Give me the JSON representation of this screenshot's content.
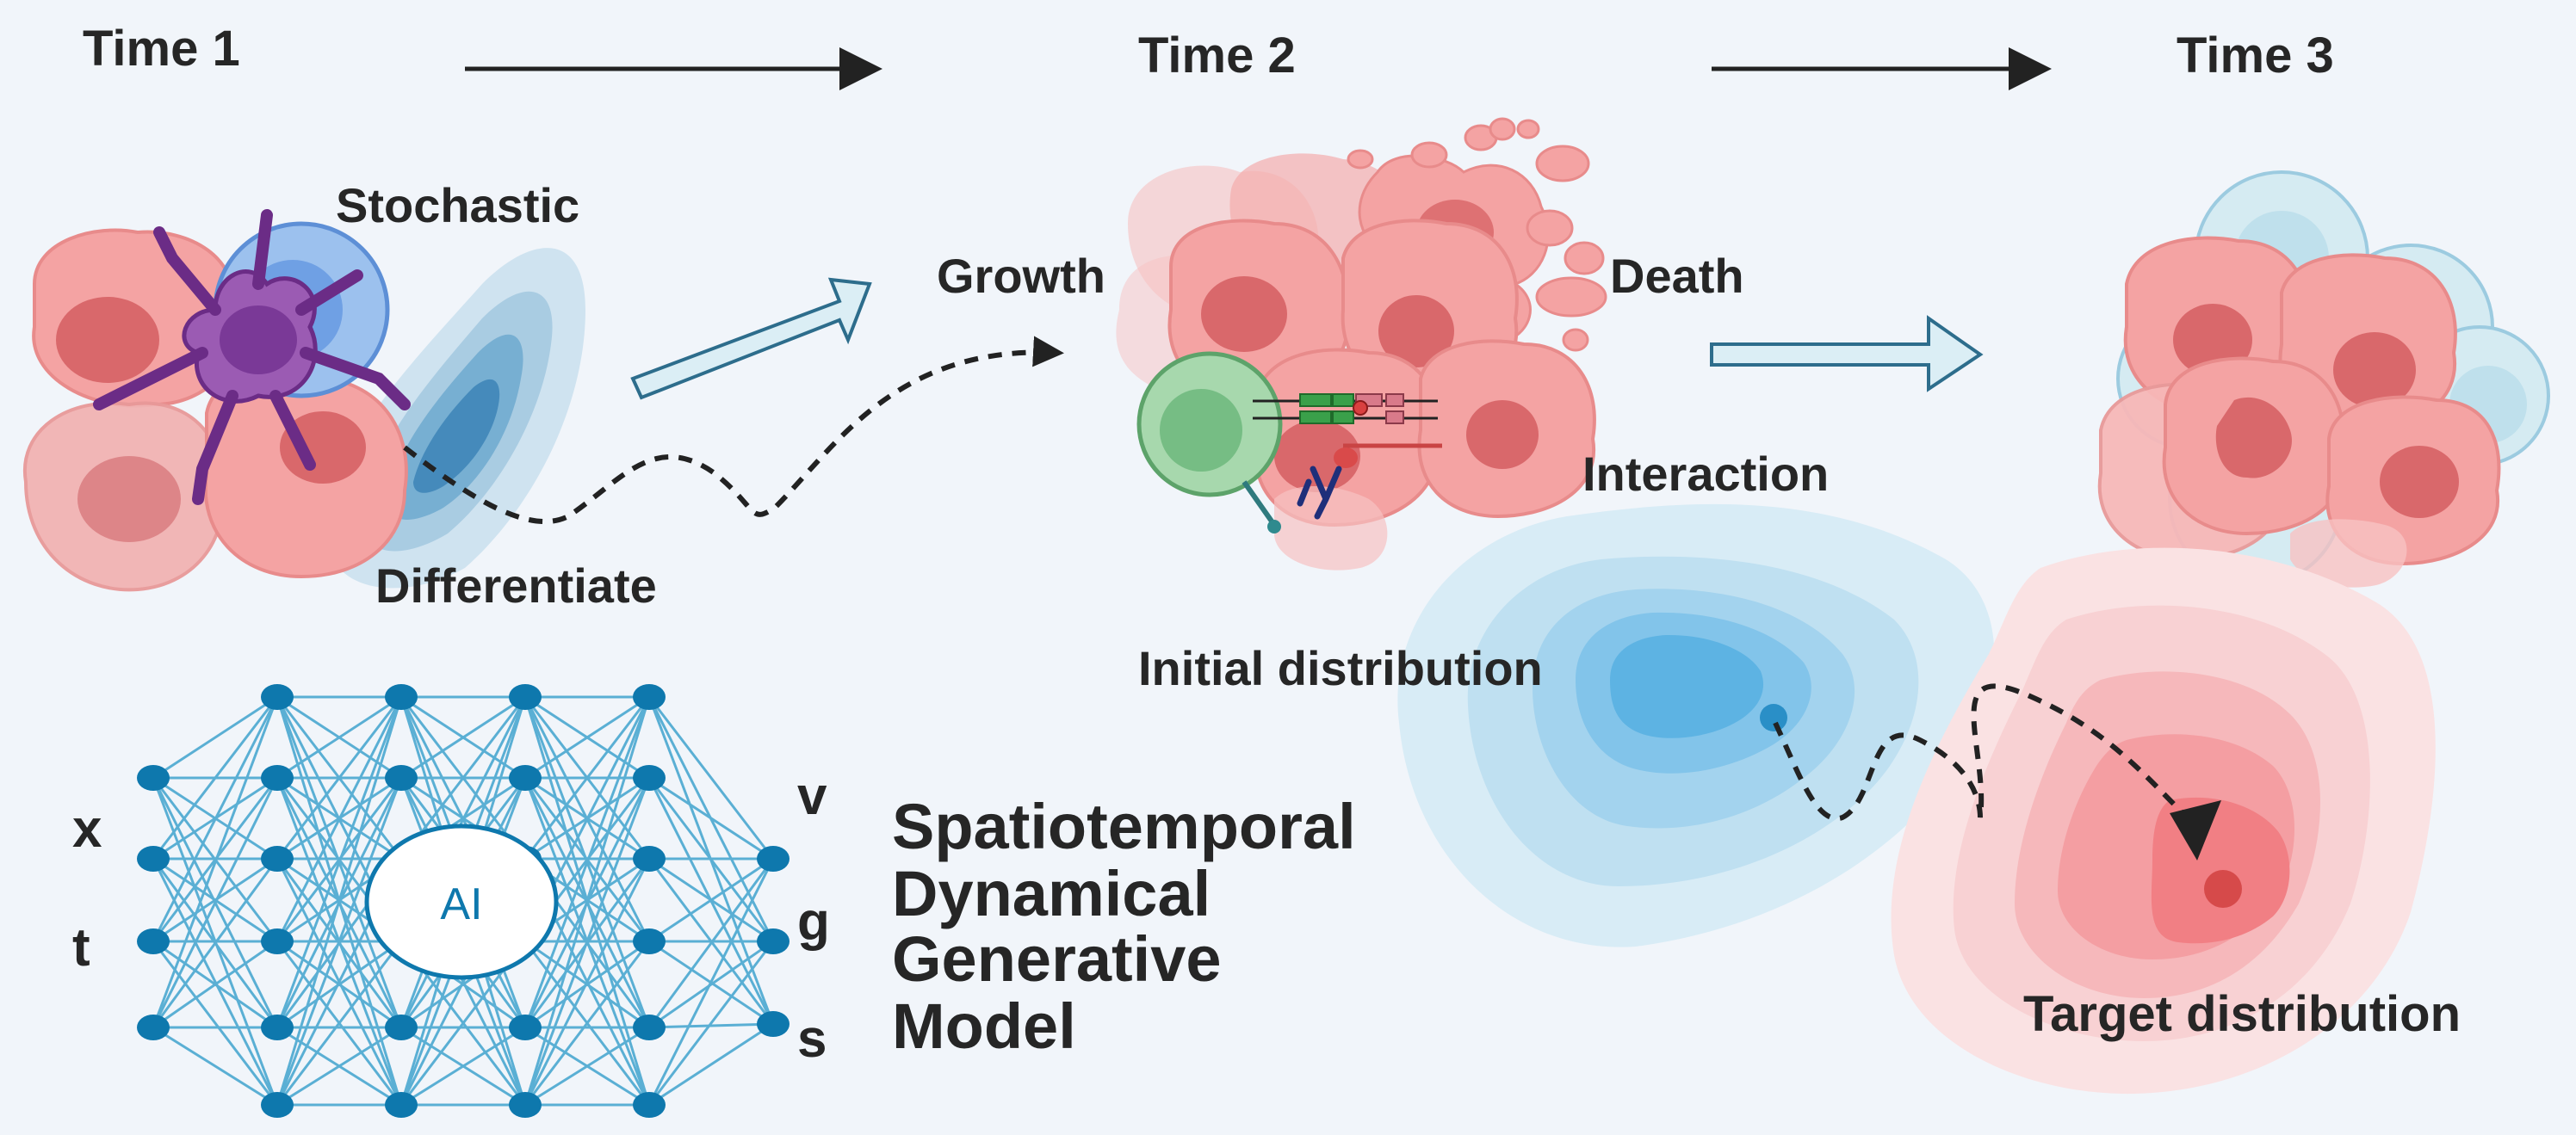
{
  "time_labels": [
    "Time 1",
    "Time 2",
    "Time 3"
  ],
  "process_labels": {
    "stochastic": "Stochastic",
    "differentiate": "Differentiate",
    "growth": "Growth",
    "death": "Death",
    "interaction": "Interaction"
  },
  "distribution_labels": {
    "initial": "Initial distribution",
    "target": "Target distribution"
  },
  "network": {
    "center_label": "AI",
    "inputs": [
      "x",
      "t"
    ],
    "outputs": [
      "v",
      "g",
      "s"
    ]
  },
  "model_title": [
    "Spatiotemporal",
    "Dynamical",
    "Generative",
    "Model"
  ],
  "colors": {
    "background": "#f1f5fa",
    "tumor_cell": "#f4a3a3",
    "tumor_nucleus": "#d9686b",
    "immune_cell": "#7fb0e8",
    "dendritic_cell": "#9b5bb3",
    "t_cell": "#8fd19b",
    "initial_distribution": "#4aaee0",
    "target_distribution": "#f07a7a",
    "network_node": "#0e78ad",
    "network_edge": "#5aafd4"
  }
}
